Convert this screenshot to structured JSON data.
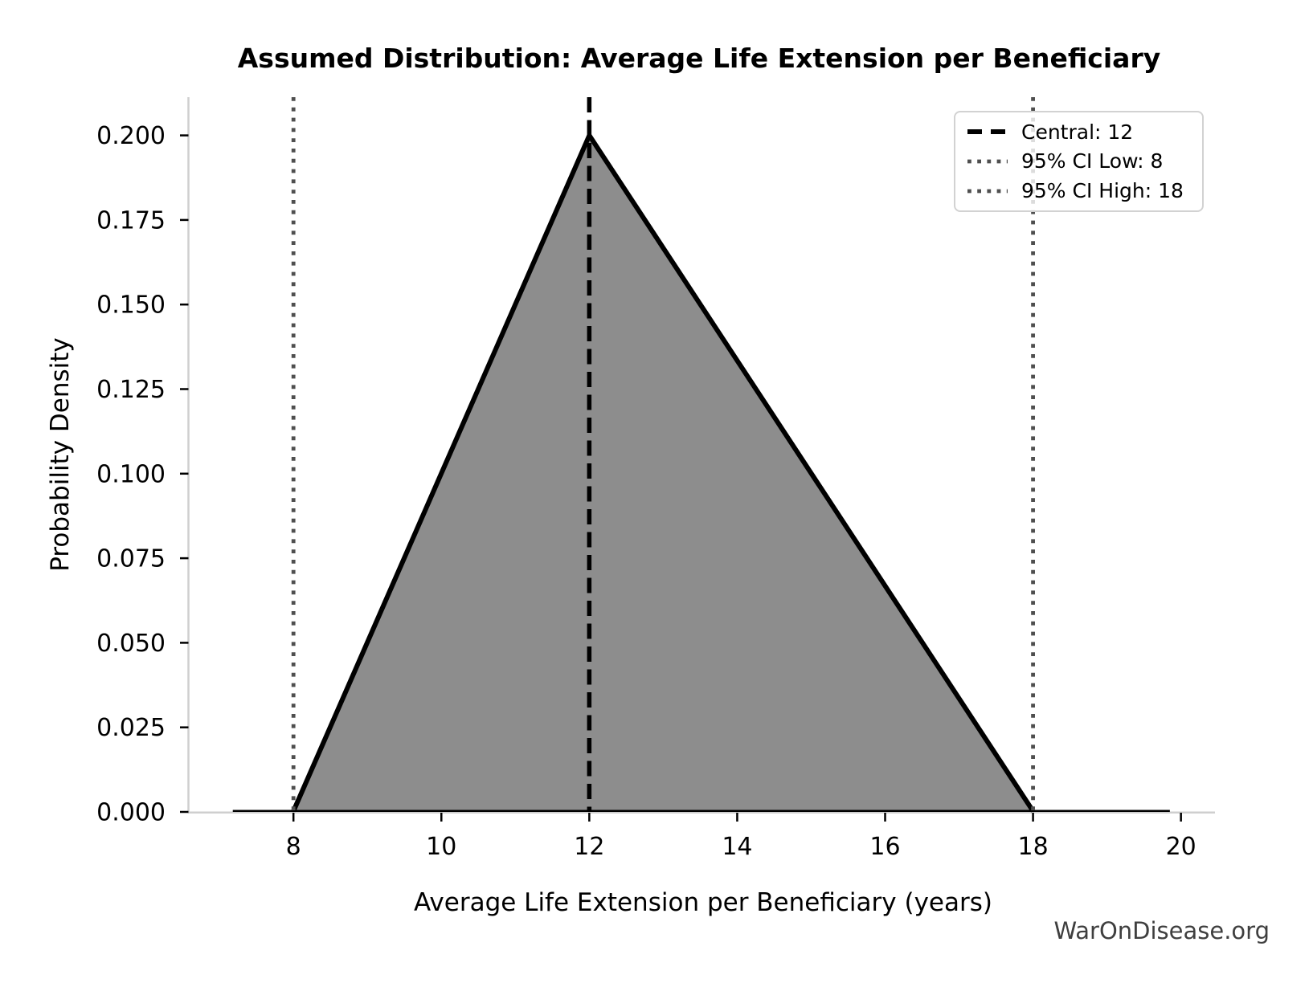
{
  "title": "Assumed Distribution: Average Life Extension per Beneficiary",
  "watermark": "WarOnDisease.org",
  "chart_data": {
    "type": "area",
    "distribution": "triangular",
    "title": "Assumed Distribution: Average Life Extension per Beneficiary",
    "xlabel": "Average Life Extension per Beneficiary (years)",
    "ylabel": "Probability Density",
    "points": [
      {
        "x": 8,
        "y": 0.0
      },
      {
        "x": 12,
        "y": 0.2
      },
      {
        "x": 18,
        "y": 0.0
      }
    ],
    "pdf_zero_line_x_range": [
      7.18,
      19.85
    ],
    "central": 12,
    "ci_low": 8,
    "ci_high": 18,
    "xlim": [
      6.58,
      20.46
    ],
    "ylim": [
      0,
      0.2113
    ],
    "grid": false,
    "xticks": {
      "values": [
        8,
        10,
        12,
        14,
        16,
        18,
        20
      ],
      "labels": [
        "8",
        "10",
        "12",
        "14",
        "16",
        "18",
        "20"
      ]
    },
    "yticks": {
      "values": [
        0.0,
        0.025,
        0.05,
        0.075,
        0.1,
        0.125,
        0.15,
        0.175,
        0.2
      ],
      "labels": [
        "0.000",
        "0.025",
        "0.050",
        "0.075",
        "0.100",
        "0.125",
        "0.150",
        "0.175",
        "0.200"
      ]
    },
    "legend": {
      "position": "upper right",
      "items": [
        {
          "label": "Central: 12",
          "style": "dashed",
          "color": "#000000"
        },
        {
          "label": "95% CI Low: 8",
          "style": "dotted",
          "color": "#4f4f4f"
        },
        {
          "label": "95% CI High: 18",
          "style": "dotted",
          "color": "#4f4f4f"
        }
      ]
    },
    "colors": {
      "fill": "#8d8d8d",
      "outline": "#000000",
      "central_line": "#000000",
      "ci_line": "#4f4f4f",
      "spine": "#cfcfcf",
      "tick": "#000000",
      "text": "#000000",
      "watermark": "#3f3f3f",
      "legend_border": "#d2d2d2",
      "background": "#ffffff"
    }
  }
}
